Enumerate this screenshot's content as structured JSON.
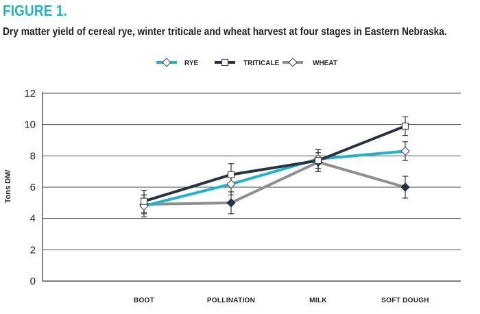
{
  "figure_label": "FIGURE 1.",
  "chart_data": {
    "type": "line",
    "title": "Dry matter yield of cereal rye, winter triticale and wheat harvest at four stages in Eastern Nebraska.",
    "xlabel": "",
    "ylabel": "Tons DM/",
    "categories": [
      "BOOT",
      "POLLINATION",
      "MILK",
      "SOFT DOUGH"
    ],
    "ylim": [
      0,
      12
    ],
    "yticks": [
      0,
      2,
      4,
      6,
      8,
      10,
      12
    ],
    "grid": true,
    "legend_position": "top-center",
    "series": [
      {
        "name": "RYE",
        "color": "#1fb5c9",
        "marker": "open-diamond",
        "values": [
          4.8,
          6.2,
          7.8,
          8.3
        ],
        "error": [
          0.7,
          0.7,
          0.6,
          0.6
        ]
      },
      {
        "name": "TRITICALE",
        "color": "#263341",
        "marker": "open-square",
        "values": [
          5.1,
          6.8,
          7.7,
          9.9
        ],
        "error": [
          0.7,
          0.7,
          0.7,
          0.6
        ]
      },
      {
        "name": "WHEAT",
        "color": "#8e8e8e",
        "marker": "filled-diamond",
        "values": [
          4.9,
          5.0,
          7.6,
          6.0
        ],
        "error": [
          0.6,
          0.7,
          0.6,
          0.7
        ]
      }
    ]
  }
}
